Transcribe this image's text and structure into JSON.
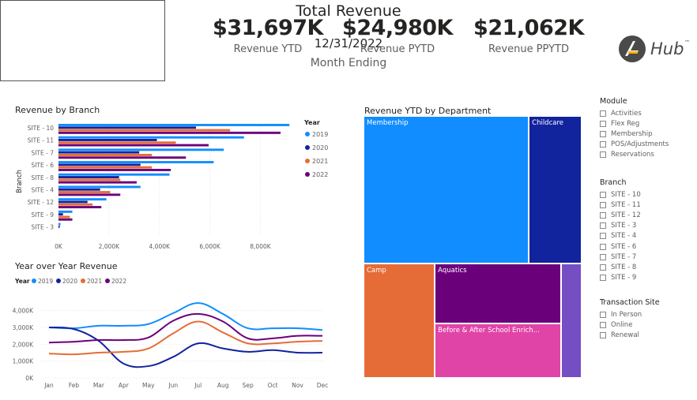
{
  "kpi_box": {
    "title": "Total Revenue",
    "date": "12/31/2022",
    "label": "Month Ending"
  },
  "cards": [
    {
      "value": "$31,697K",
      "label": "Revenue YTD"
    },
    {
      "value": "$24,980K",
      "label": "Revenue PYTD"
    },
    {
      "value": "$21,062K",
      "label": "Revenue PPYTD"
    }
  ],
  "logo": {
    "text": "Hub",
    "mark": "™"
  },
  "colors": {
    "y2019": "#118dff",
    "y2020": "#12239e",
    "y2021": "#e66c37",
    "y2022": "#6b007b"
  },
  "chart_data": [
    {
      "type": "bar",
      "title": "Revenue by Branch",
      "ylabel": "Branch",
      "categories": [
        "SITE - 10",
        "SITE - 11",
        "SITE - 7",
        "SITE - 6",
        "SITE - 8",
        "SITE - 4",
        "SITE - 12",
        "SITE - 9",
        "SITE - 3"
      ],
      "series": [
        {
          "name": "2019",
          "values": [
            9150,
            7350,
            6550,
            6150,
            4400,
            3250,
            1900,
            550,
            80
          ]
        },
        {
          "name": "2020",
          "values": [
            5450,
            3900,
            3200,
            3250,
            2400,
            1650,
            1150,
            180,
            50
          ]
        },
        {
          "name": "2021",
          "values": [
            6800,
            4650,
            3700,
            3700,
            2450,
            2050,
            1350,
            450,
            0
          ]
        },
        {
          "name": "2022",
          "values": [
            8800,
            5950,
            5050,
            4450,
            3100,
            2450,
            1700,
            550,
            0
          ]
        }
      ],
      "legend_title": "Year",
      "xticks": [
        "0K",
        "2,000K",
        "4,000K",
        "6,000K",
        "8,000K"
      ],
      "xlim": [
        0,
        9300
      ],
      "legend_position": "right"
    },
    {
      "type": "line",
      "title": "Year over Year Revenue",
      "legend_title": "Year",
      "x": [
        "Jan",
        "Feb",
        "Mar",
        "Apr",
        "May",
        "Jun",
        "Jul",
        "Aug",
        "Sep",
        "Oct",
        "Nov",
        "Dec"
      ],
      "series": [
        {
          "name": "2019",
          "values": [
            3000,
            2950,
            3100,
            3100,
            3200,
            3850,
            4450,
            3800,
            2950,
            2950,
            2950,
            2850
          ]
        },
        {
          "name": "2020",
          "values": [
            3000,
            2900,
            2200,
            850,
            700,
            1250,
            2050,
            1750,
            1550,
            1650,
            1500,
            1500
          ]
        },
        {
          "name": "2021",
          "values": [
            1450,
            1400,
            1500,
            1550,
            1750,
            2650,
            3350,
            2700,
            2050,
            2050,
            2150,
            2200
          ]
        },
        {
          "name": "2022",
          "values": [
            2100,
            2150,
            2250,
            2250,
            2400,
            3400,
            3800,
            3350,
            2350,
            2350,
            2500,
            2500
          ]
        }
      ],
      "yticks": [
        "0K",
        "1,000K",
        "2,000K",
        "3,000K",
        "4,000K"
      ],
      "ylim": [
        0,
        4500
      ],
      "legend_position": "top-left"
    },
    {
      "type": "treemap",
      "title": "Revenue YTD by Department",
      "cells": [
        {
          "label": "Membership",
          "value": 12200,
          "color": "#118dff"
        },
        {
          "label": "Childcare",
          "value": 3900,
          "color": "#12239e"
        },
        {
          "label": "Camp",
          "value": 4100,
          "color": "#e66c37"
        },
        {
          "label": "Aquatics",
          "value": 3800,
          "color": "#6b007b"
        },
        {
          "label": "Before & After School Enrich...",
          "value": 3450,
          "color": "#e044a7"
        },
        {
          "label": "",
          "value": 1200,
          "color": "#744ec2"
        }
      ]
    }
  ],
  "slicers": [
    {
      "title": "Module",
      "items": [
        "Activities",
        "Flex Reg",
        "Membership",
        "POS/Adjustments",
        "Reservations"
      ]
    },
    {
      "title": "Branch",
      "items": [
        "SITE - 10",
        "SITE - 11",
        "SITE - 12",
        "SITE - 3",
        "SITE - 4",
        "SITE - 6",
        "SITE - 7",
        "SITE - 8",
        "SITE - 9"
      ]
    },
    {
      "title": "Transaction Site",
      "items": [
        "In Person",
        "Online",
        "Renewal"
      ]
    }
  ]
}
